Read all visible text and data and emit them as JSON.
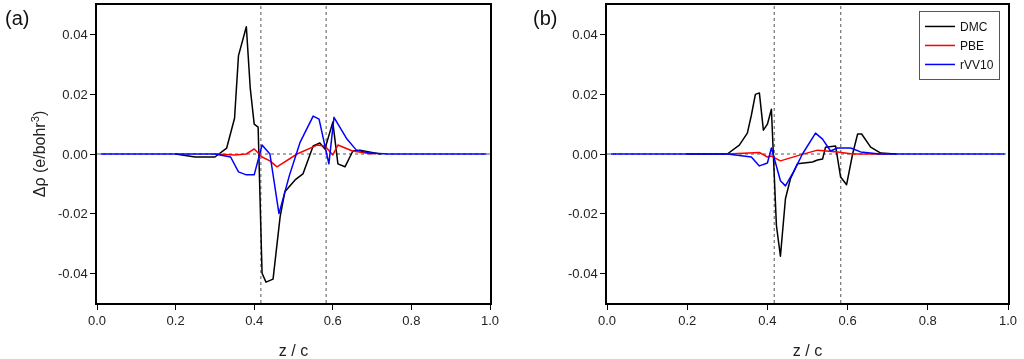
{
  "chart_data": [
    {
      "type": "line",
      "xlabel": "z / c",
      "ylabel": "Δρ (e/bohr$^{3}$)",
      "annotations": [
        "(a)"
      ],
      "legend": false,
      "marker": "none",
      "line_style": "solid",
      "xlim": [
        0,
        1
      ],
      "xticks": [
        {
          "value": 0,
          "label": "0.0"
        },
        {
          "value": 0.2,
          "label": "0.2"
        },
        {
          "value": 0.4,
          "label": "0.4"
        },
        {
          "value": 0.6,
          "label": "0.6"
        },
        {
          "value": 0.8,
          "label": "0.8"
        },
        {
          "value": 1,
          "label": "1.0"
        }
      ],
      "ylim": [
        -0.05,
        0.05
      ],
      "yticks": [
        {
          "value": -0.04,
          "label": "-0.04"
        },
        {
          "value": -0.02,
          "label": "-0.02"
        },
        {
          "value": 0,
          "label": "0.00"
        },
        {
          "value": 0.02,
          "label": "0.02"
        },
        {
          "value": 0.04,
          "label": "0.04"
        }
      ],
      "ref_lines": [
        {
          "axis": "x",
          "value": 0.417,
          "color": "#555555",
          "line_style": "dotted"
        },
        {
          "axis": "x",
          "value": 0.583,
          "color": "#555555",
          "line_style": "dotted"
        },
        {
          "axis": "y",
          "value": 0,
          "color": "#555555",
          "line_style": "dotted"
        }
      ],
      "series": [
        {
          "color": "#000000",
          "x": [
            0.2,
            0.25,
            0.3,
            0.33,
            0.35,
            0.36,
            0.38,
            0.39,
            0.4,
            0.41,
            0.42,
            0.43,
            0.448,
            0.466,
            0.478,
            0.504,
            0.524,
            0.55,
            0.567,
            0.58,
            0.6,
            0.613,
            0.631,
            0.651,
            0.669,
            0.72
          ],
          "values": [
            0,
            -0.001,
            -0.001,
            0.002,
            0.012,
            0.033,
            0.0427,
            0.022,
            0.01,
            0.009,
            -0.04,
            -0.043,
            -0.042,
            -0.021,
            -0.0127,
            -0.0087,
            -0.0067,
            0.0027,
            0.0037,
            0.0017,
            0.0107,
            -0.0033,
            -0.0043,
            0.001,
            0.0013,
            0
          ]
        },
        {
          "color": "#ff0000",
          "x": [
            0.3,
            0.35,
            0.38,
            0.4,
            0.42,
            0.44,
            0.458,
            0.509,
            0.56,
            0.58,
            0.6,
            0.613,
            0.65,
            0.7
          ],
          "values": [
            0,
            -0.0003,
            0,
            0.0017,
            -0.001,
            -0.0023,
            -0.0043,
            0,
            0.003,
            0.0027,
            -0.0003,
            0.003,
            0.001,
            0
          ]
        },
        {
          "color": "#0000ff",
          "x": [
            0.01,
            0.3,
            0.34,
            0.36,
            0.38,
            0.4,
            0.42,
            0.44,
            0.463,
            0.49,
            0.517,
            0.55,
            0.565,
            0.59,
            0.603,
            0.636,
            0.66,
            0.695,
            0.74,
            0.99
          ],
          "values": [
            0,
            0,
            -0.001,
            -0.006,
            -0.007,
            -0.007,
            0.003,
            0,
            -0.02,
            -0.007,
            0.004,
            0.0127,
            0.0117,
            -0.0033,
            0.0123,
            0.005,
            0.0013,
            0.0003,
            0,
            0
          ]
        }
      ]
    },
    {
      "type": "line",
      "xlabel": "z / c",
      "annotations": [
        "(b)"
      ],
      "legend": "top right",
      "marker": "none",
      "line_style": "solid",
      "xlim": [
        0,
        1
      ],
      "xticks": [
        {
          "value": 0,
          "label": "0.0"
        },
        {
          "value": 0.2,
          "label": "0.2"
        },
        {
          "value": 0.4,
          "label": "0.4"
        },
        {
          "value": 0.6,
          "label": "0.6"
        },
        {
          "value": 0.8,
          "label": "0.8"
        },
        {
          "value": 1,
          "label": "1.0"
        }
      ],
      "ylim": [
        -0.05,
        0.05
      ],
      "yticks": [
        {
          "value": -0.04,
          "label": "-0.04"
        },
        {
          "value": -0.02,
          "label": "-0.02"
        },
        {
          "value": 0,
          "label": "0.00"
        },
        {
          "value": 0.02,
          "label": "0.02"
        },
        {
          "value": 0.04,
          "label": "0.04"
        }
      ],
      "ref_lines": [
        {
          "axis": "x",
          "value": 0.417,
          "color": "#555555",
          "line_style": "dotted"
        },
        {
          "axis": "x",
          "value": 0.583,
          "color": "#555555",
          "line_style": "dotted"
        },
        {
          "axis": "y",
          "value": 0,
          "color": "#555555",
          "line_style": "dotted"
        }
      ],
      "series": [
        {
          "name": "DMC",
          "color": "#000000",
          "x": [
            0.2,
            0.3,
            0.33,
            0.35,
            0.36,
            0.37,
            0.38,
            0.39,
            0.4,
            0.41,
            0.4225,
            0.4325,
            0.445,
            0.4575,
            0.475,
            0.5125,
            0.525,
            0.5375,
            0.545,
            0.57,
            0.5825,
            0.5975,
            0.6125,
            0.625,
            0.635,
            0.6575,
            0.6825,
            0.72
          ],
          "values": [
            0,
            0,
            0.003,
            0.007,
            0.013,
            0.02,
            0.0205,
            0.008,
            0.01,
            0.015,
            -0.024,
            -0.0343,
            -0.015,
            -0.0083,
            -0.0033,
            -0.0027,
            -0.002,
            -0.0017,
            0.0023,
            0.0027,
            -0.0077,
            -0.0103,
            0,
            0.0067,
            0.0067,
            0.0023,
            0.0003,
            0
          ]
        },
        {
          "name": "PBE",
          "color": "#ff0000",
          "x": [
            0.3,
            0.38,
            0.4,
            0.41,
            0.4325,
            0.4825,
            0.525,
            0.575,
            0.6125,
            0.7
          ],
          "values": [
            0,
            0.0005,
            -0.001,
            -0.0007,
            -0.0023,
            -0.0003,
            0.0013,
            0.0007,
            0,
            0
          ]
        },
        {
          "name": "rVV10",
          "color": "#0000ff",
          "x": [
            0.01,
            0.3,
            0.36,
            0.38,
            0.4,
            0.41,
            0.4325,
            0.445,
            0.465,
            0.4875,
            0.52,
            0.5375,
            0.5575,
            0.575,
            0.6075,
            0.6325,
            0.68,
            0.99
          ],
          "values": [
            0,
            0,
            -0.001,
            -0.004,
            -0.003,
            0.002,
            -0.009,
            -0.0107,
            -0.006,
            0,
            0.007,
            0.005,
            0.001,
            0.002,
            0.002,
            0.0007,
            0,
            0
          ]
        }
      ]
    }
  ]
}
